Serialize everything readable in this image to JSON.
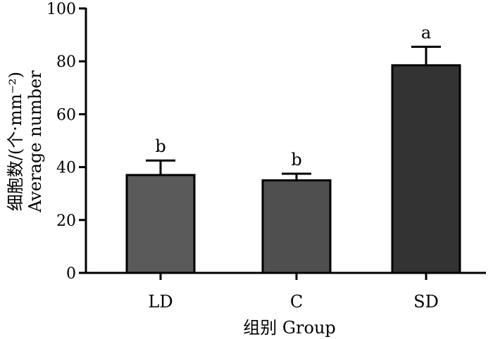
{
  "chart_data": {
    "type": "bar",
    "categories": [
      "LD",
      "C",
      "SD"
    ],
    "values": [
      37,
      35,
      78.5
    ],
    "errors": [
      5.5,
      2.5,
      7
    ],
    "significance": [
      "b",
      "b",
      "a"
    ],
    "bar_colors": [
      "#5a5a5a",
      "#4f4f4f",
      "#333333"
    ],
    "xlabel": "组别 Group",
    "ylabel_line1": "细胞数/(个·mm⁻²)",
    "ylabel_line2": "Average number",
    "ylim": [
      0,
      100
    ],
    "yticks": [
      0,
      20,
      40,
      60,
      80,
      100
    ],
    "grid": false
  }
}
